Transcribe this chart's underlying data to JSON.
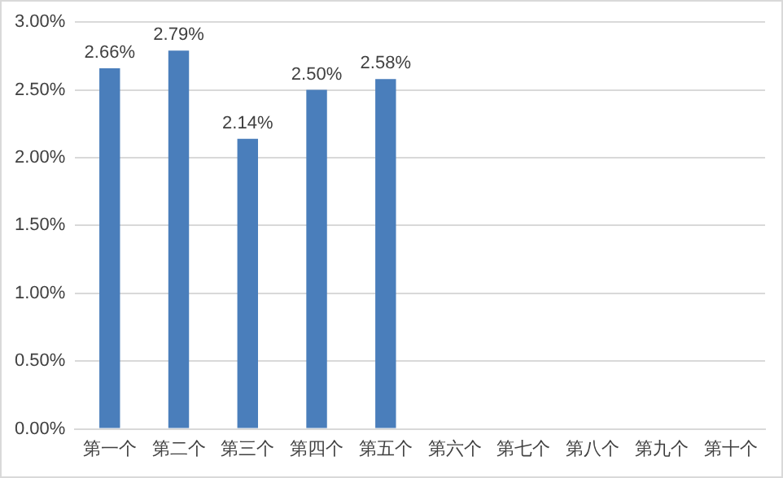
{
  "chart_data": {
    "type": "bar",
    "categories": [
      "第一个",
      "第二个",
      "第三个",
      "第四个",
      "第五个",
      "第六个",
      "第七个",
      "第八个",
      "第九个",
      "第十个"
    ],
    "values": [
      2.66,
      2.79,
      2.14,
      2.5,
      2.58,
      null,
      null,
      null,
      null,
      null
    ],
    "value_labels": [
      "2.66%",
      "2.79%",
      "2.14%",
      "2.50%",
      "2.58%",
      null,
      null,
      null,
      null,
      null
    ],
    "color": "#4a7ebb",
    "ylim": [
      0,
      3
    ],
    "yticks": [
      {
        "value": 0,
        "label": "0.00%"
      },
      {
        "value": 0.5,
        "label": "0.50%"
      },
      {
        "value": 1,
        "label": "1.00%"
      },
      {
        "value": 1.5,
        "label": "1.50%"
      },
      {
        "value": 2,
        "label": "2.00%"
      },
      {
        "value": 2.5,
        "label": "2.50%"
      },
      {
        "value": 3,
        "label": "3.00%"
      }
    ],
    "grid": "y",
    "legend": false
  }
}
